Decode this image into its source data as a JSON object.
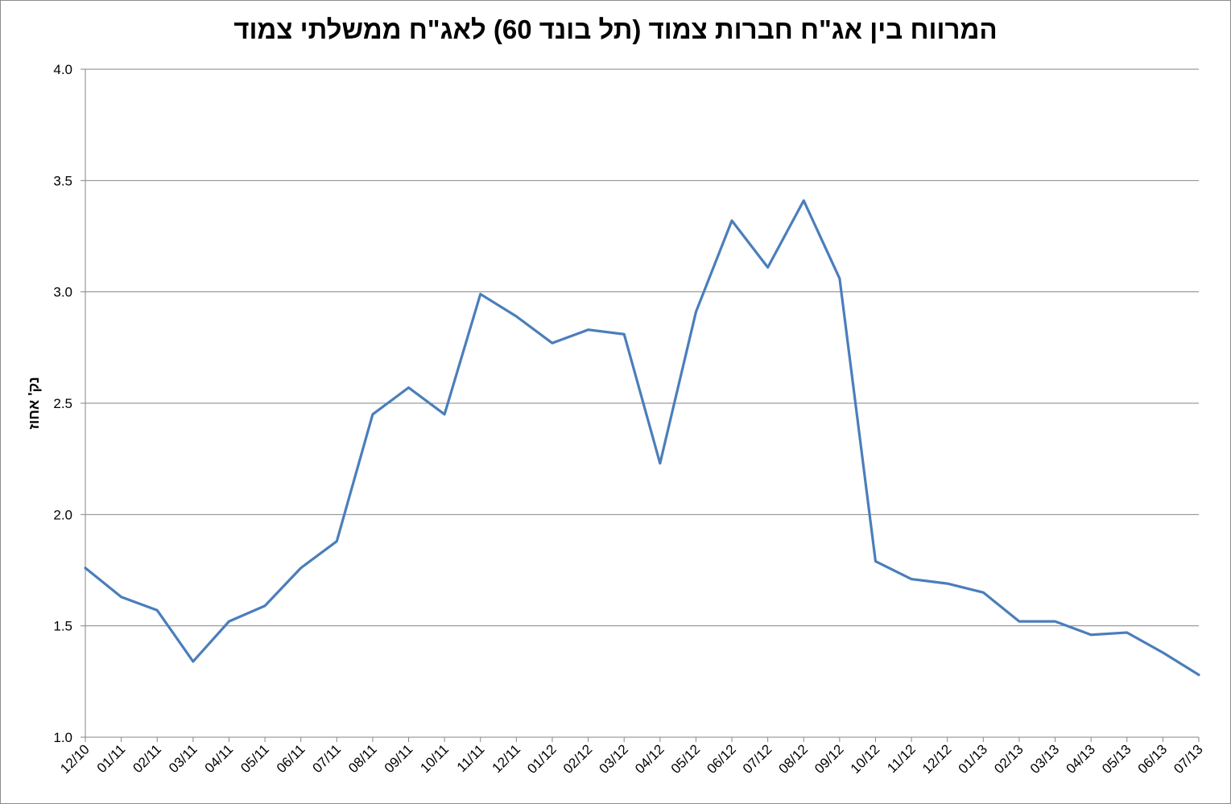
{
  "chart_data": {
    "type": "line",
    "title": "המרווח בין אג\"ח חברות צמוד (תל בונד 60) לאג\"ח ממשלתי צמוד",
    "xlabel": "",
    "ylabel": "נק' אחוז",
    "ylim": [
      1.0,
      4.0
    ],
    "yticks": [
      "1.0",
      "1.5",
      "2.0",
      "2.5",
      "3.0",
      "3.5",
      "4.0"
    ],
    "grid": true,
    "legend": "none",
    "color": "#4a7ebb",
    "categories": [
      "12/10",
      "01/11",
      "02/11",
      "03/11",
      "04/11",
      "05/11",
      "06/11",
      "07/11",
      "08/11",
      "09/11",
      "10/11",
      "11/11",
      "12/11",
      "01/12",
      "02/12",
      "03/12",
      "04/12",
      "05/12",
      "06/12",
      "07/12",
      "08/12",
      "09/12",
      "10/12",
      "11/12",
      "12/12",
      "01/13",
      "02/13",
      "03/13",
      "04/13",
      "05/13",
      "06/13",
      "07/13"
    ],
    "series": [
      {
        "values": [
          1.76,
          1.63,
          1.57,
          1.34,
          1.52,
          1.59,
          1.76,
          1.88,
          2.45,
          2.57,
          2.45,
          2.99,
          2.89,
          2.77,
          2.83,
          2.81,
          2.23,
          2.91,
          3.32,
          3.11,
          3.41,
          3.06,
          1.79,
          1.71,
          1.69,
          1.65,
          1.52,
          1.52,
          1.46,
          1.47,
          1.38,
          1.28
        ]
      }
    ]
  }
}
